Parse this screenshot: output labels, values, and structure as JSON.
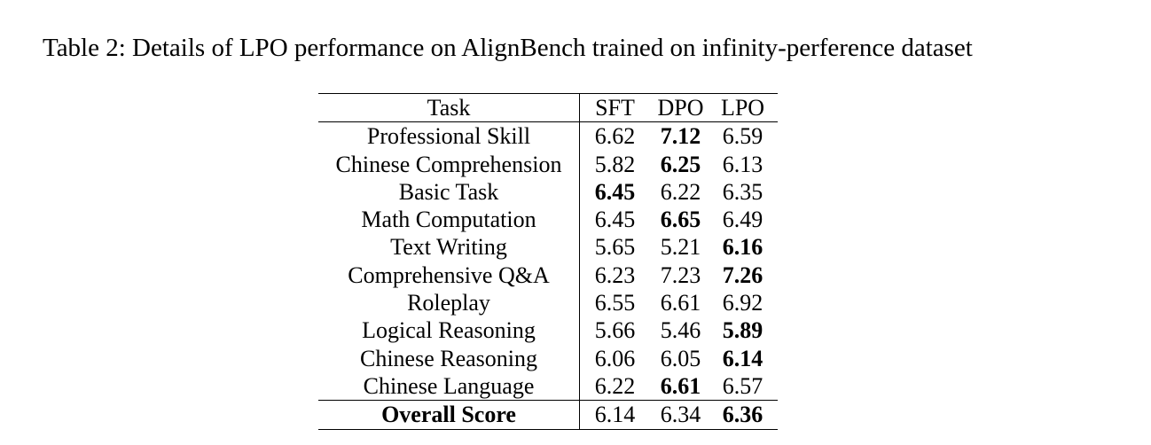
{
  "caption": "Table 2: Details of LPO performance on AlignBench trained on infinity-perference dataset",
  "table": {
    "header": {
      "task": "Task",
      "sft": "SFT",
      "dpo": "DPO",
      "lpo": "LPO"
    },
    "rows": [
      {
        "task": "Professional Skill",
        "sft": "6.62",
        "dpo": "7.12",
        "lpo": "6.59",
        "bold": "dpo"
      },
      {
        "task": "Chinese Comprehension",
        "sft": "5.82",
        "dpo": "6.25",
        "lpo": "6.13",
        "bold": "dpo"
      },
      {
        "task": "Basic Task",
        "sft": "6.45",
        "dpo": "6.22",
        "lpo": "6.35",
        "bold": "sft"
      },
      {
        "task": "Math Computation",
        "sft": "6.45",
        "dpo": "6.65",
        "lpo": "6.49",
        "bold": "dpo"
      },
      {
        "task": "Text Writing",
        "sft": "5.65",
        "dpo": "5.21",
        "lpo": "6.16",
        "bold": "lpo"
      },
      {
        "task": "Comprehensive Q&A",
        "sft": "6.23",
        "dpo": "7.23",
        "lpo": "7.26",
        "bold": "lpo"
      },
      {
        "task": "Roleplay",
        "sft": "6.55",
        "dpo": "6.61",
        "lpo": "6.92",
        "bold": ""
      },
      {
        "task": "Logical Reasoning",
        "sft": "5.66",
        "dpo": "5.46",
        "lpo": "5.89",
        "bold": "lpo"
      },
      {
        "task": "Chinese Reasoning",
        "sft": "6.06",
        "dpo": "6.05",
        "lpo": "6.14",
        "bold": "lpo"
      },
      {
        "task": "Chinese Language",
        "sft": "6.22",
        "dpo": "6.61",
        "lpo": "6.57",
        "bold": "dpo"
      }
    ],
    "overall": {
      "task": "Overall Score",
      "sft": "6.14",
      "dpo": "6.34",
      "lpo": "6.36",
      "bold": "lpo"
    }
  }
}
